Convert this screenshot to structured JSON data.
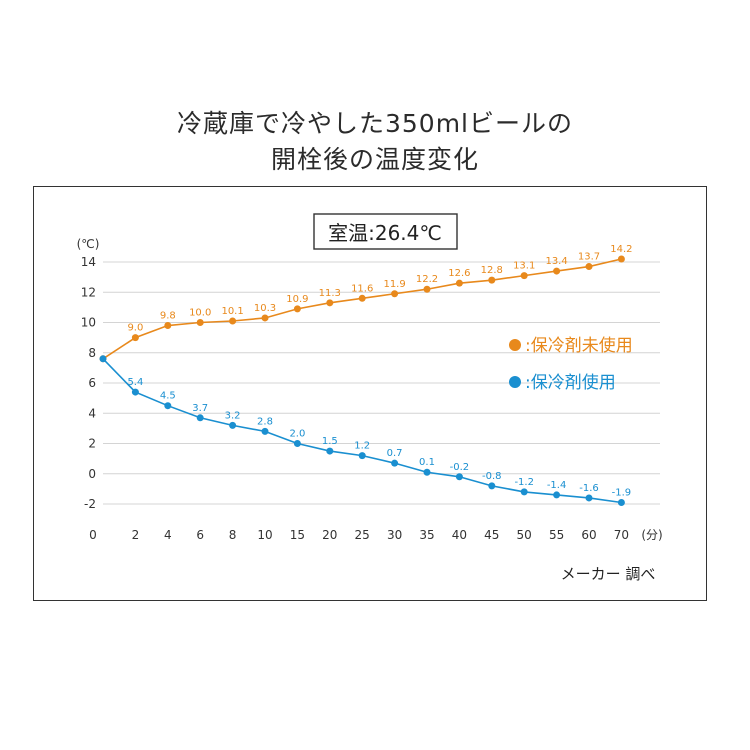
{
  "title": {
    "line1": "冷蔵庫で冷やした350mlビールの",
    "line2": "開栓後の温度変化"
  },
  "room_temp_label": "室温:26.4℃",
  "source_note": "メーカー 調べ",
  "colors": {
    "orange": "#e8891c",
    "blue": "#1a8fd0",
    "grid": "#d4d4d4",
    "axis": "#333333"
  },
  "chart_data": {
    "type": "line",
    "title": "冷蔵庫で冷やした350mlビールの開栓後の温度変化",
    "xlabel": "(分)",
    "ylabel": "(℃)",
    "x": [
      0,
      2,
      4,
      6,
      8,
      10,
      15,
      20,
      25,
      30,
      35,
      40,
      45,
      50,
      55,
      60,
      70
    ],
    "x_tick_labels": [
      "0",
      "2",
      "4",
      "6",
      "8",
      "10",
      "15",
      "20",
      "25",
      "30",
      "35",
      "40",
      "45",
      "50",
      "55",
      "60",
      "70"
    ],
    "y_ticks": [
      14,
      12,
      10,
      8,
      6,
      4,
      2,
      0,
      -2
    ],
    "ylim": [
      -2,
      14
    ],
    "grid": true,
    "legend_position": "right",
    "series": [
      {
        "name": ":保冷剤未使用",
        "color": "#e8891c",
        "values": [
          7.6,
          9.0,
          9.8,
          10.0,
          10.1,
          10.3,
          10.9,
          11.3,
          11.6,
          11.9,
          12.2,
          12.6,
          12.8,
          13.1,
          13.4,
          13.7,
          14.2
        ],
        "labels": [
          "",
          "9.0",
          "9.8",
          "10.0",
          "10.1",
          "10.3",
          "10.9",
          "11.3",
          "11.6",
          "11.9",
          "12.2",
          "12.6",
          "12.8",
          "13.1",
          "13.4",
          "13.7",
          "14.2"
        ]
      },
      {
        "name": ":保冷剤使用",
        "color": "#1a8fd0",
        "values": [
          7.6,
          5.4,
          4.5,
          3.7,
          3.2,
          2.8,
          2.0,
          1.5,
          1.2,
          0.7,
          0.1,
          -0.2,
          -0.8,
          -1.2,
          -1.4,
          -1.6,
          -1.9
        ],
        "labels": [
          "",
          "5.4",
          "4.5",
          "3.7",
          "3.2",
          "2.8",
          "2.0",
          "1.5",
          "1.2",
          "0.7",
          "0.1",
          "-0.2",
          "-0.8",
          "-1.2",
          "-1.4",
          "-1.6",
          "-1.9"
        ]
      }
    ]
  }
}
